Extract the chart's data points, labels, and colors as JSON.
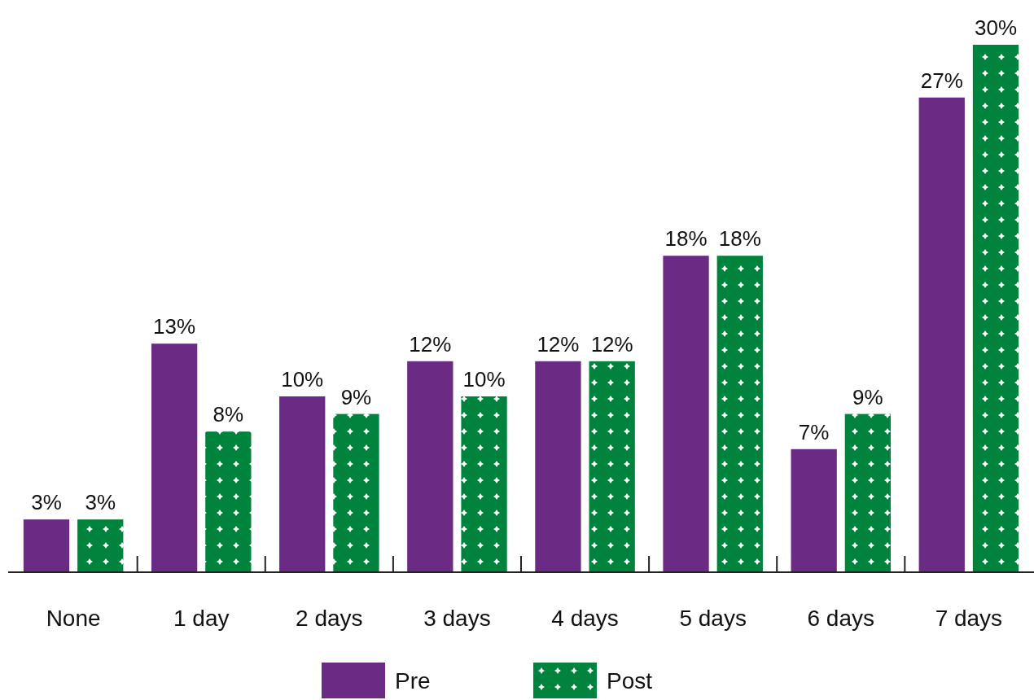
{
  "chart_data": {
    "type": "bar",
    "categories": [
      "None",
      "1 day",
      "2 days",
      "3 days",
      "4 days",
      "5 days",
      "6 days",
      "7 days"
    ],
    "series": [
      {
        "name": "Pre",
        "color": "#6b2a84",
        "values": [
          3,
          13,
          10,
          12,
          12,
          18,
          7,
          27
        ],
        "value_labels": [
          "3%",
          "13%",
          "10%",
          "12%",
          "12%",
          "18%",
          "7%",
          "27%"
        ]
      },
      {
        "name": "Post",
        "color": "#00843d",
        "values": [
          3,
          8,
          9,
          10,
          12,
          18,
          9,
          30
        ],
        "value_labels": [
          "3%",
          "8%",
          "9%",
          "10%",
          "12%",
          "18%",
          "9%",
          "30%"
        ]
      }
    ],
    "legend": "bottom"
  }
}
